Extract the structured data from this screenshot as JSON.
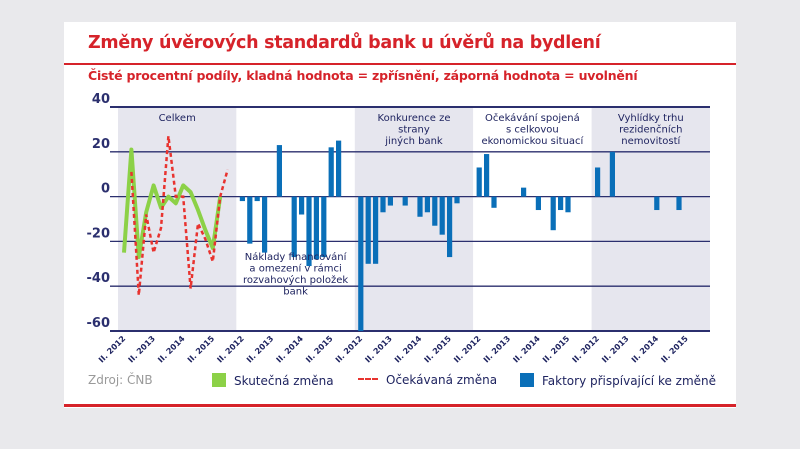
{
  "title": "Změny úvěrových standardů bank u úvěrů na bydlení",
  "subtitle": "Čisté procentní podíly, kladná hodnota = zpřísnění, záporná hodnota = uvolnění",
  "source": "Zdroj: ČNB",
  "colors": {
    "accent": "#d6232a",
    "actual": "#8cd147",
    "expected": "#e8332f",
    "factors": "#0a6fb8",
    "grid": "#2b2f6e",
    "panel_shade": "#e6e6ee"
  },
  "chart_data": {
    "type": "bar",
    "ylim": [
      -60,
      40
    ],
    "yticks": [
      40,
      20,
      0,
      -20,
      -40,
      -60
    ],
    "grid": true,
    "legend_placement": "bottom",
    "x_tick_labels": [
      "II. 2012",
      "II. 2013",
      "II. 2014",
      "II. 2015"
    ],
    "panels": [
      {
        "label": "Celkem",
        "type": "line",
        "series": [
          {
            "name": "Skutečná změna",
            "values": [
              -25,
              21,
              -27,
              -7,
              5,
              -5,
              0,
              -3,
              5,
              2,
              -6,
              -15,
              -23,
              0,
              null
            ]
          },
          {
            "name": "Očekávaná změna",
            "values": [
              null,
              11,
              -44,
              -8,
              -25,
              -14,
              27,
              0,
              0,
              -41,
              -12,
              -19,
              -29,
              0,
              12
            ]
          }
        ]
      },
      {
        "label": "Náklady financování a omezení v rámci rozvahových položek bank",
        "type": "bar",
        "values": [
          -2,
          -21,
          -2,
          -25,
          0,
          23,
          0,
          -27,
          -8,
          -31,
          -28,
          -27,
          22,
          25
        ]
      },
      {
        "label": "Konkurence ze strany jiných bank",
        "type": "bar",
        "values": [
          -60,
          -30,
          -30,
          -7,
          -4,
          0,
          -4,
          0,
          -9,
          -7,
          -13,
          -17,
          -27,
          -3
        ]
      },
      {
        "label": "Očekávání spojená s celkovou ekonomickou situací",
        "type": "bar",
        "values": [
          13,
          19,
          -5,
          0,
          0,
          0,
          4,
          0,
          -6,
          0,
          -15,
          -6,
          -7,
          0
        ]
      },
      {
        "label": "Vyhlídky trhu rezidenčních nemovitostí",
        "type": "bar",
        "values": [
          13,
          0,
          20,
          0,
          0,
          0,
          0,
          0,
          -6,
          0,
          0,
          -6,
          0,
          0
        ]
      }
    ],
    "legend": [
      "Skutečná změna",
      "Očekávaná změna",
      "Faktory přispívající ke změně"
    ]
  }
}
